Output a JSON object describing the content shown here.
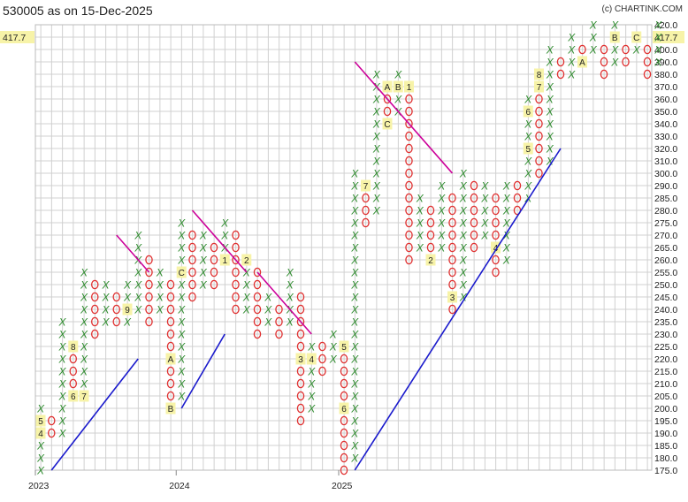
{
  "title": "530005 as on 15-Dec-2025",
  "credit": "(c) CHARTINK.COM",
  "colors": {
    "x": "#2e8b2e",
    "o": "#e03030",
    "support": "#1a1acc",
    "resistance": "#cc0099",
    "grid": "#d0d0d0",
    "highlight": "#f7f3a8"
  },
  "chart_data": {
    "type": "point-and-figure",
    "title": "530005 as on 15-Dec-2025",
    "ylim": [
      175,
      420
    ],
    "box_levels": [
      175,
      180,
      185,
      190,
      195,
      200,
      205,
      210,
      215,
      220,
      225,
      230,
      235,
      240,
      245,
      250,
      255,
      260,
      265,
      270,
      275,
      280,
      285,
      290,
      300,
      310,
      320,
      330,
      340,
      350,
      360,
      370,
      380,
      390,
      400,
      410,
      420
    ],
    "last_price": "417.7",
    "x_labels": [
      {
        "col": 0,
        "text": "2023"
      },
      {
        "col": 13,
        "text": "2024"
      },
      {
        "col": 28,
        "text": "2025"
      }
    ],
    "columns": [
      {
        "type": "X",
        "from": 175,
        "to": 200,
        "marks": {
          "190": "4",
          "195": "5"
        }
      },
      {
        "type": "O",
        "from": 190,
        "to": 195
      },
      {
        "type": "X",
        "from": 190,
        "to": 235
      },
      {
        "type": "O",
        "from": 205,
        "to": 225,
        "marks": {
          "205": "6",
          "225": "8"
        }
      },
      {
        "type": "X",
        "from": 205,
        "to": 255,
        "marks": {
          "205": "7"
        }
      },
      {
        "type": "O",
        "from": 230,
        "to": 250
      },
      {
        "type": "X",
        "from": 235,
        "to": 250
      },
      {
        "type": "O",
        "from": 235,
        "to": 245
      },
      {
        "type": "X",
        "from": 235,
        "to": 250,
        "marks": {
          "240": "9"
        }
      },
      {
        "type": "X",
        "from": 240,
        "to": 270
      },
      {
        "type": "O",
        "from": 235,
        "to": 260
      },
      {
        "type": "X",
        "from": 240,
        "to": 255
      },
      {
        "type": "O",
        "from": 200,
        "to": 250,
        "marks": {
          "200": "B",
          "220": "A"
        }
      },
      {
        "type": "X",
        "from": 205,
        "to": 275,
        "marks": {
          "255": "C"
        }
      },
      {
        "type": "O",
        "from": 245,
        "to": 270
      },
      {
        "type": "X",
        "from": 250,
        "to": 270
      },
      {
        "type": "O",
        "from": 250,
        "to": 265
      },
      {
        "type": "X",
        "from": 260,
        "to": 275,
        "marks": {
          "260": "1"
        }
      },
      {
        "type": "O",
        "from": 240,
        "to": 270
      },
      {
        "type": "X",
        "from": 240,
        "to": 260,
        "marks": {
          "260": "2"
        }
      },
      {
        "type": "O",
        "from": 230,
        "to": 255
      },
      {
        "type": "X",
        "from": 235,
        "to": 245
      },
      {
        "type": "O",
        "from": 230,
        "to": 240
      },
      {
        "type": "X",
        "from": 235,
        "to": 255
      },
      {
        "type": "O",
        "from": 195,
        "to": 245,
        "marks": {
          "220": "3"
        }
      },
      {
        "type": "X",
        "from": 200,
        "to": 225,
        "marks": {
          "220": "4"
        }
      },
      {
        "type": "O",
        "from": 215,
        "to": 225
      },
      {
        "type": "X",
        "from": 220,
        "to": 230
      },
      {
        "type": "O",
        "from": 175,
        "to": 225,
        "marks": {
          "200": "6",
          "225": "5"
        }
      },
      {
        "type": "X",
        "from": 180,
        "to": 300
      },
      {
        "type": "O",
        "from": 275,
        "to": 290,
        "marks": {
          "290": "7"
        }
      },
      {
        "type": "X",
        "from": 280,
        "to": 380
      },
      {
        "type": "O",
        "from": 340,
        "to": 370,
        "marks": {
          "340": "C",
          "370": "A"
        }
      },
      {
        "type": "X",
        "from": 350,
        "to": 380,
        "marks": {
          "370": "B"
        }
      },
      {
        "type": "O",
        "from": 260,
        "to": 370,
        "marks": {
          "370": "1"
        }
      },
      {
        "type": "X",
        "from": 265,
        "to": 285
      },
      {
        "type": "O",
        "from": 260,
        "to": 280,
        "marks": {
          "260": "2"
        }
      },
      {
        "type": "X",
        "from": 265,
        "to": 290
      },
      {
        "type": "O",
        "from": 240,
        "to": 285,
        "marks": {
          "245": "3"
        }
      },
      {
        "type": "X",
        "from": 245,
        "to": 300
      },
      {
        "type": "O",
        "from": 265,
        "to": 290
      },
      {
        "type": "X",
        "from": 270,
        "to": 290
      },
      {
        "type": "O",
        "from": 255,
        "to": 285,
        "marks": {
          "265": "4"
        }
      },
      {
        "type": "X",
        "from": 260,
        "to": 290
      },
      {
        "type": "O",
        "from": 280,
        "to": 290
      },
      {
        "type": "X",
        "from": 285,
        "to": 360,
        "marks": {
          "320": "5",
          "350": "6"
        }
      },
      {
        "type": "O",
        "from": 300,
        "to": 380,
        "marks": {
          "370": "7",
          "380": "8"
        }
      },
      {
        "type": "X",
        "from": 310,
        "to": 400
      },
      {
        "type": "O",
        "from": 380,
        "to": 390
      },
      {
        "type": "X",
        "from": 380,
        "to": 410
      },
      {
        "type": "O",
        "from": 390,
        "to": 400,
        "marks": {
          "390": "A"
        }
      },
      {
        "type": "X",
        "from": 400,
        "to": 420
      },
      {
        "type": "O",
        "from": 380,
        "to": 400
      },
      {
        "type": "X",
        "from": 390,
        "to": 420,
        "marks": {
          "410": "B"
        }
      },
      {
        "type": "O",
        "from": 390,
        "to": 400
      },
      {
        "type": "X",
        "from": 400,
        "to": 410,
        "marks": {
          "410": "C"
        }
      },
      {
        "type": "O",
        "from": 380,
        "to": 400
      },
      {
        "type": "X",
        "from": 390,
        "to": 420
      }
    ],
    "support_lines": [
      {
        "from": [
          1,
          175
        ],
        "to": [
          9,
          220
        ]
      },
      {
        "from": [
          13,
          200
        ],
        "to": [
          17,
          230
        ]
      },
      {
        "from": [
          29,
          175
        ],
        "to": [
          48,
          320
        ]
      }
    ],
    "resistance_lines": [
      {
        "from": [
          7,
          270
        ],
        "to": [
          10,
          255
        ]
      },
      {
        "from": [
          14,
          280
        ],
        "to": [
          19,
          255
        ]
      },
      {
        "from": [
          20,
          255
        ],
        "to": [
          25,
          230
        ]
      },
      {
        "from": [
          29,
          390
        ],
        "to": [
          38,
          300
        ]
      }
    ]
  }
}
